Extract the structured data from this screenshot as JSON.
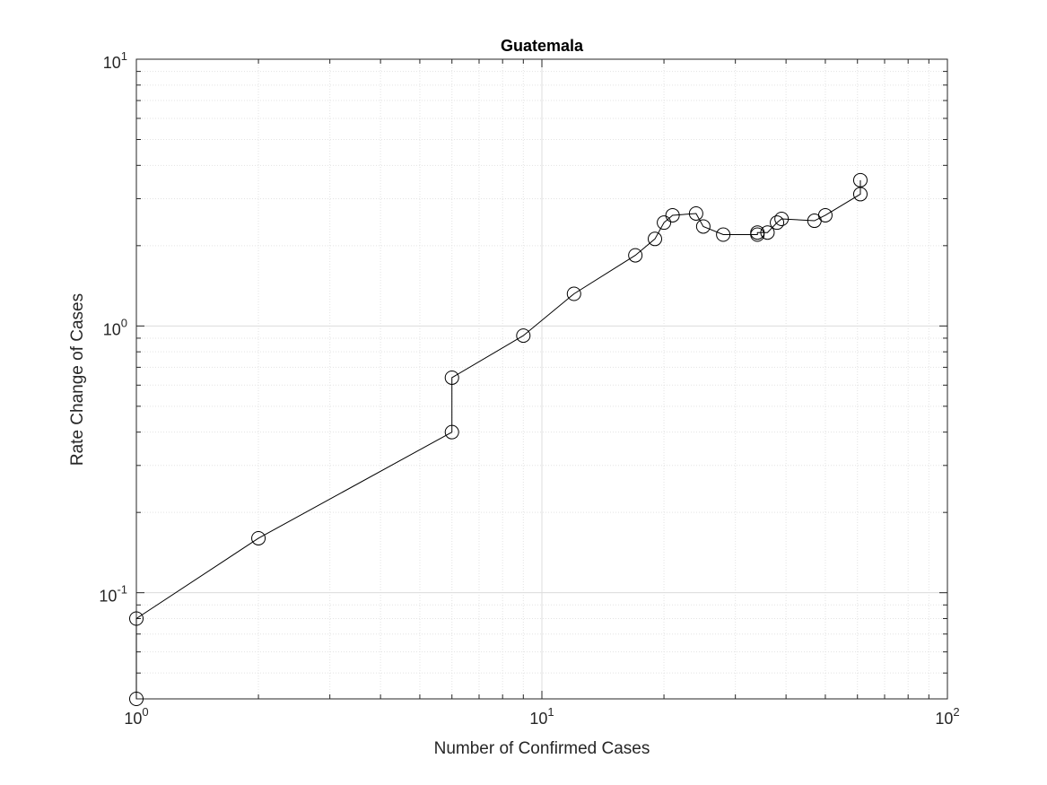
{
  "chart_data": {
    "type": "line",
    "title": "Guatemala",
    "xlabel": "Number of Confirmed Cases",
    "ylabel": "Rate Change of Cases",
    "xscale": "log",
    "yscale": "log",
    "xlim": [
      1,
      100
    ],
    "ylim": [
      0.04,
      10
    ],
    "grid": true,
    "minor_grid": true,
    "marker": "open-circle",
    "line_color": "#000000",
    "x_ticks": [
      {
        "base": "10",
        "exp": "0",
        "value": 1
      },
      {
        "base": "10",
        "exp": "1",
        "value": 10
      },
      {
        "base": "10",
        "exp": "2",
        "value": 100
      }
    ],
    "y_ticks": [
      {
        "base": "10",
        "exp": "-1",
        "value": 0.1
      },
      {
        "base": "10",
        "exp": "0",
        "value": 1
      },
      {
        "base": "10",
        "exp": "1",
        "value": 10
      }
    ],
    "series": [
      {
        "points": [
          {
            "x": 1,
            "y": 0.04
          },
          {
            "x": 1,
            "y": 0.08
          },
          {
            "x": 2,
            "y": 0.16
          },
          {
            "x": 6,
            "y": 0.4
          },
          {
            "x": 6,
            "y": 0.64
          },
          {
            "x": 9,
            "y": 0.92
          },
          {
            "x": 12,
            "y": 1.32
          },
          {
            "x": 17,
            "y": 1.84
          },
          {
            "x": 19,
            "y": 2.12
          },
          {
            "x": 20,
            "y": 2.44
          },
          {
            "x": 21,
            "y": 2.6
          },
          {
            "x": 24,
            "y": 2.64
          },
          {
            "x": 25,
            "y": 2.36
          },
          {
            "x": 28,
            "y": 2.2
          },
          {
            "x": 34,
            "y": 2.2
          },
          {
            "x": 34,
            "y": 2.24
          },
          {
            "x": 36,
            "y": 2.24
          },
          {
            "x": 38,
            "y": 2.44
          },
          {
            "x": 39,
            "y": 2.52
          },
          {
            "x": 47,
            "y": 2.48
          },
          {
            "x": 50,
            "y": 2.6
          },
          {
            "x": 61,
            "y": 3.12
          },
          {
            "x": 61,
            "y": 3.52
          }
        ]
      }
    ]
  }
}
